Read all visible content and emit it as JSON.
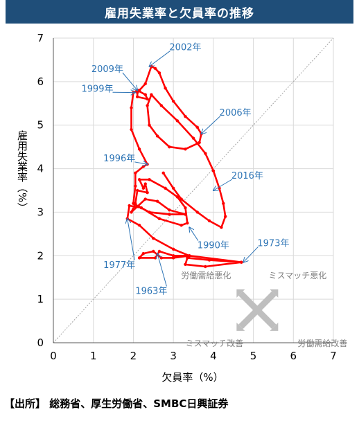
{
  "header": {
    "title": "雇用失業率と欠員率の推移"
  },
  "footer": {
    "source": "【出所】 総務省、厚生労働省、SMBC日興証券"
  },
  "legend_box": {
    "label_tl": "労働需給悪化",
    "label_tr": "ミスマッチ悪化",
    "label_bl": "ミスマッチ改善",
    "label_br": "労働需給改善"
  },
  "chart_data": {
    "type": "line",
    "xlabel": "欠員率（%）",
    "ylabel": "雇用失業率（%）",
    "xlim": [
      0,
      7
    ],
    "ylim": [
      0,
      7
    ],
    "xticks": [
      0,
      1,
      2,
      3,
      4,
      5,
      6,
      7
    ],
    "yticks": [
      0,
      1,
      2,
      3,
      4,
      5,
      6,
      7
    ],
    "grid": true,
    "diagonal_reference": [
      [
        0,
        0
      ],
      [
        7,
        7
      ]
    ],
    "line_color": "#ff0000",
    "annotation_color": "#2e75b6",
    "series": [
      {
        "values": [
          [
            4.7,
            1.85
          ],
          [
            3.8,
            1.75
          ],
          [
            3.3,
            1.8
          ],
          [
            3.35,
            1.95
          ],
          [
            3.9,
            1.9
          ],
          [
            4.7,
            1.85
          ],
          [
            3.4,
            2.0
          ],
          [
            3.0,
            1.95
          ],
          [
            2.7,
            1.95
          ],
          [
            2.5,
            2.1
          ],
          [
            2.25,
            2.05
          ],
          [
            2.15,
            1.95
          ],
          [
            2.55,
            1.95
          ],
          [
            2.65,
            2.1
          ],
          [
            3.0,
            2.0
          ],
          [
            3.4,
            2.0
          ],
          [
            3.0,
            2.15
          ],
          [
            2.5,
            2.4
          ],
          [
            2.15,
            2.7
          ],
          [
            1.85,
            2.85
          ],
          [
            1.9,
            3.15
          ],
          [
            2.2,
            3.1
          ],
          [
            2.65,
            2.85
          ],
          [
            3.2,
            2.7
          ],
          [
            3.35,
            2.75
          ],
          [
            3.3,
            3.1
          ],
          [
            3.1,
            3.35
          ],
          [
            2.8,
            3.55
          ],
          [
            2.4,
            3.75
          ],
          [
            2.15,
            3.75
          ],
          [
            2.25,
            3.55
          ],
          [
            2.3,
            3.65
          ],
          [
            2.35,
            3.45
          ],
          [
            2.1,
            3.5
          ],
          [
            2.05,
            3.2
          ],
          [
            1.95,
            3.0
          ],
          [
            2.3,
            3.3
          ],
          [
            2.6,
            3.25
          ],
          [
            2.9,
            3.05
          ],
          [
            3.3,
            2.95
          ],
          [
            2.9,
            2.95
          ],
          [
            2.4,
            3.0
          ],
          [
            2.0,
            3.2
          ],
          [
            2.05,
            3.6
          ],
          [
            2.05,
            3.9
          ],
          [
            2.25,
            4.05
          ],
          [
            2.35,
            4.1
          ],
          [
            2.15,
            4.45
          ],
          [
            1.95,
            4.9
          ],
          [
            1.95,
            5.4
          ],
          [
            2.0,
            5.75
          ],
          [
            2.1,
            5.8
          ],
          [
            2.3,
            5.7
          ],
          [
            2.35,
            5.6
          ],
          [
            2.1,
            5.65
          ],
          [
            2.1,
            5.75
          ],
          [
            2.15,
            5.8
          ],
          [
            2.3,
            5.95
          ],
          [
            2.45,
            6.35
          ],
          [
            2.55,
            6.3
          ],
          [
            2.65,
            6.2
          ],
          [
            2.8,
            5.85
          ],
          [
            3.0,
            5.55
          ],
          [
            3.3,
            5.2
          ],
          [
            3.6,
            4.95
          ],
          [
            3.7,
            4.8
          ],
          [
            3.65,
            4.6
          ],
          [
            3.3,
            4.45
          ],
          [
            2.9,
            4.5
          ],
          [
            2.6,
            4.75
          ],
          [
            2.4,
            5.0
          ],
          [
            2.35,
            5.45
          ],
          [
            2.45,
            5.7
          ],
          [
            2.7,
            5.45
          ],
          [
            3.1,
            5.1
          ],
          [
            3.5,
            4.7
          ],
          [
            3.8,
            4.35
          ],
          [
            4.0,
            3.95
          ],
          [
            4.15,
            3.55
          ],
          [
            4.25,
            3.2
          ],
          [
            4.3,
            2.9
          ],
          [
            4.2,
            2.65
          ],
          [
            3.9,
            2.8
          ],
          [
            3.6,
            3.0
          ],
          [
            3.2,
            3.3
          ],
          [
            3.0,
            3.55
          ],
          [
            2.75,
            3.9
          ]
        ]
      }
    ],
    "annotations": [
      {
        "text": "2002年",
        "at": [
          2.4,
          6.35
        ],
        "label": [
          3.3,
          6.8
        ]
      },
      {
        "text": "2009年",
        "at": [
          2.1,
          5.8
        ],
        "label": [
          1.35,
          6.3
        ]
      },
      {
        "text": "1999年",
        "at": [
          2.05,
          5.75
        ],
        "label": [
          1.1,
          5.85
        ]
      },
      {
        "text": "2006年",
        "at": [
          3.7,
          4.8
        ],
        "label": [
          4.55,
          5.3
        ]
      },
      {
        "text": "1996年",
        "at": [
          2.35,
          4.1
        ],
        "label": [
          1.65,
          4.25
        ]
      },
      {
        "text": "2016年",
        "at": [
          4.0,
          3.5
        ],
        "label": [
          4.85,
          3.85
        ]
      },
      {
        "text": "1990年",
        "at": [
          3.4,
          2.65
        ],
        "label": [
          4.0,
          2.25
        ]
      },
      {
        "text": "1973年",
        "at": [
          4.75,
          1.85
        ],
        "label": [
          5.5,
          2.3
        ]
      },
      {
        "text": "1977年",
        "at": [
          1.85,
          2.85
        ],
        "label": [
          1.65,
          1.8
        ]
      },
      {
        "text": "1963年",
        "at": [
          2.6,
          2.05
        ],
        "label": [
          2.45,
          1.2
        ]
      }
    ]
  }
}
